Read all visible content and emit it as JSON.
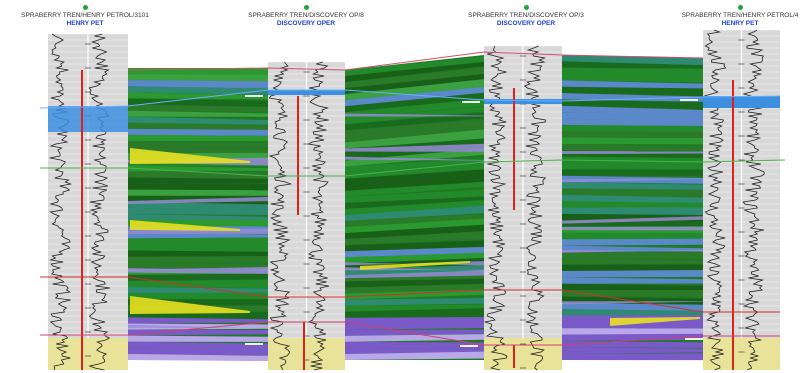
{
  "colors": {
    "marker_dot": "#22a33a",
    "operator_text": "#1f3fd6",
    "base_green": "#1f7a24",
    "blue_zone": "#3d8fe0",
    "yellow_zone": "#e8e398",
    "red_curve": "#e0201a",
    "horizon_pink": "#d05070",
    "horizon_green": "#50b050",
    "horizon_red": "#d03030",
    "lavender": "#9a8ad8",
    "yellow_anomaly": "#e8e020",
    "purple_band": "#7a5ac8"
  },
  "wells": [
    {
      "name": "SPRABERRY TREN/HENRY PETROL/3101",
      "operator": "HENRY PET"
    },
    {
      "name": "SPRABERRY TREN/DISCOVERY OP/8",
      "operator": "DISCOVERY OPER"
    },
    {
      "name": "SPRABERRY TREN/DISCOVERY OP/3",
      "operator": "DISCOVERY OPER"
    },
    {
      "name": "SPRABERRY TREN/HENRY PETROL/4",
      "operator": "HENRY PET"
    }
  ]
}
